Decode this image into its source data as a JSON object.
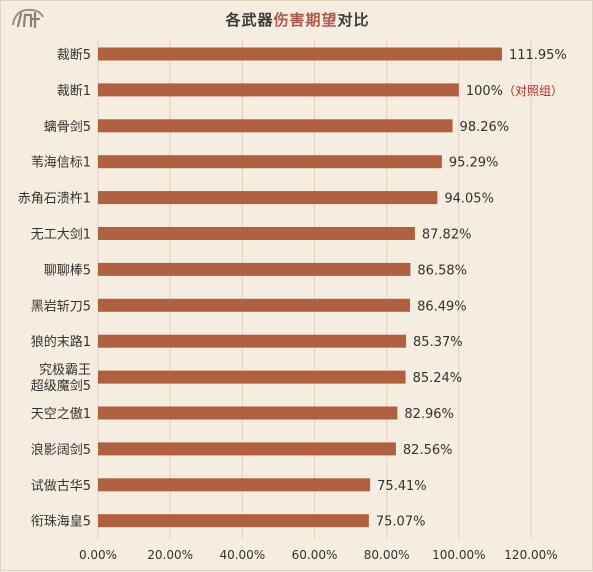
{
  "title": {
    "prefix": "各武器",
    "highlight": "伤害期望",
    "suffix": "对比"
  },
  "colors": {
    "bar": "#b0603f",
    "grid": "#e0d2bc",
    "background": "#f5ede0",
    "accent": "#b0584a"
  },
  "chart_data": {
    "type": "bar",
    "orientation": "horizontal",
    "title": "各武器伤害期望对比",
    "categories": [
      [
        "裁断5"
      ],
      [
        "裁断1"
      ],
      [
        "螭骨剑5"
      ],
      [
        "苇海信标1"
      ],
      [
        "赤角石溃杵1"
      ],
      [
        "无工大剑1"
      ],
      [
        "聊聊棒5"
      ],
      [
        "黑岩斩刀5"
      ],
      [
        "狼的末路1"
      ],
      [
        "究极霸王",
        "超级魔剑5"
      ],
      [
        "天空之傲1"
      ],
      [
        "浪影阔剑5"
      ],
      [
        "试做古华5"
      ],
      [
        "衔珠海皇5"
      ]
    ],
    "values": [
      111.95,
      100,
      98.26,
      95.29,
      94.05,
      87.82,
      86.58,
      86.49,
      85.37,
      85.24,
      82.96,
      82.56,
      75.41,
      75.07
    ],
    "value_labels": [
      "111.95%",
      "100%",
      "98.26%",
      "95.29%",
      "94.05%",
      "87.82%",
      "86.58%",
      "86.49%",
      "85.37%",
      "85.24%",
      "82.96%",
      "82.56%",
      "75.41%",
      "75.07%"
    ],
    "annotations": [
      {
        "index": 1,
        "text": "（对照组）"
      }
    ],
    "xlim": [
      0,
      120
    ],
    "xticks": [
      0,
      20,
      40,
      60,
      80,
      100,
      120
    ],
    "xtick_labels": [
      "0.00%",
      "20.00%",
      "40.00%",
      "60.00%",
      "80.00%",
      "100.00%",
      "120.00%"
    ],
    "grid": true
  }
}
